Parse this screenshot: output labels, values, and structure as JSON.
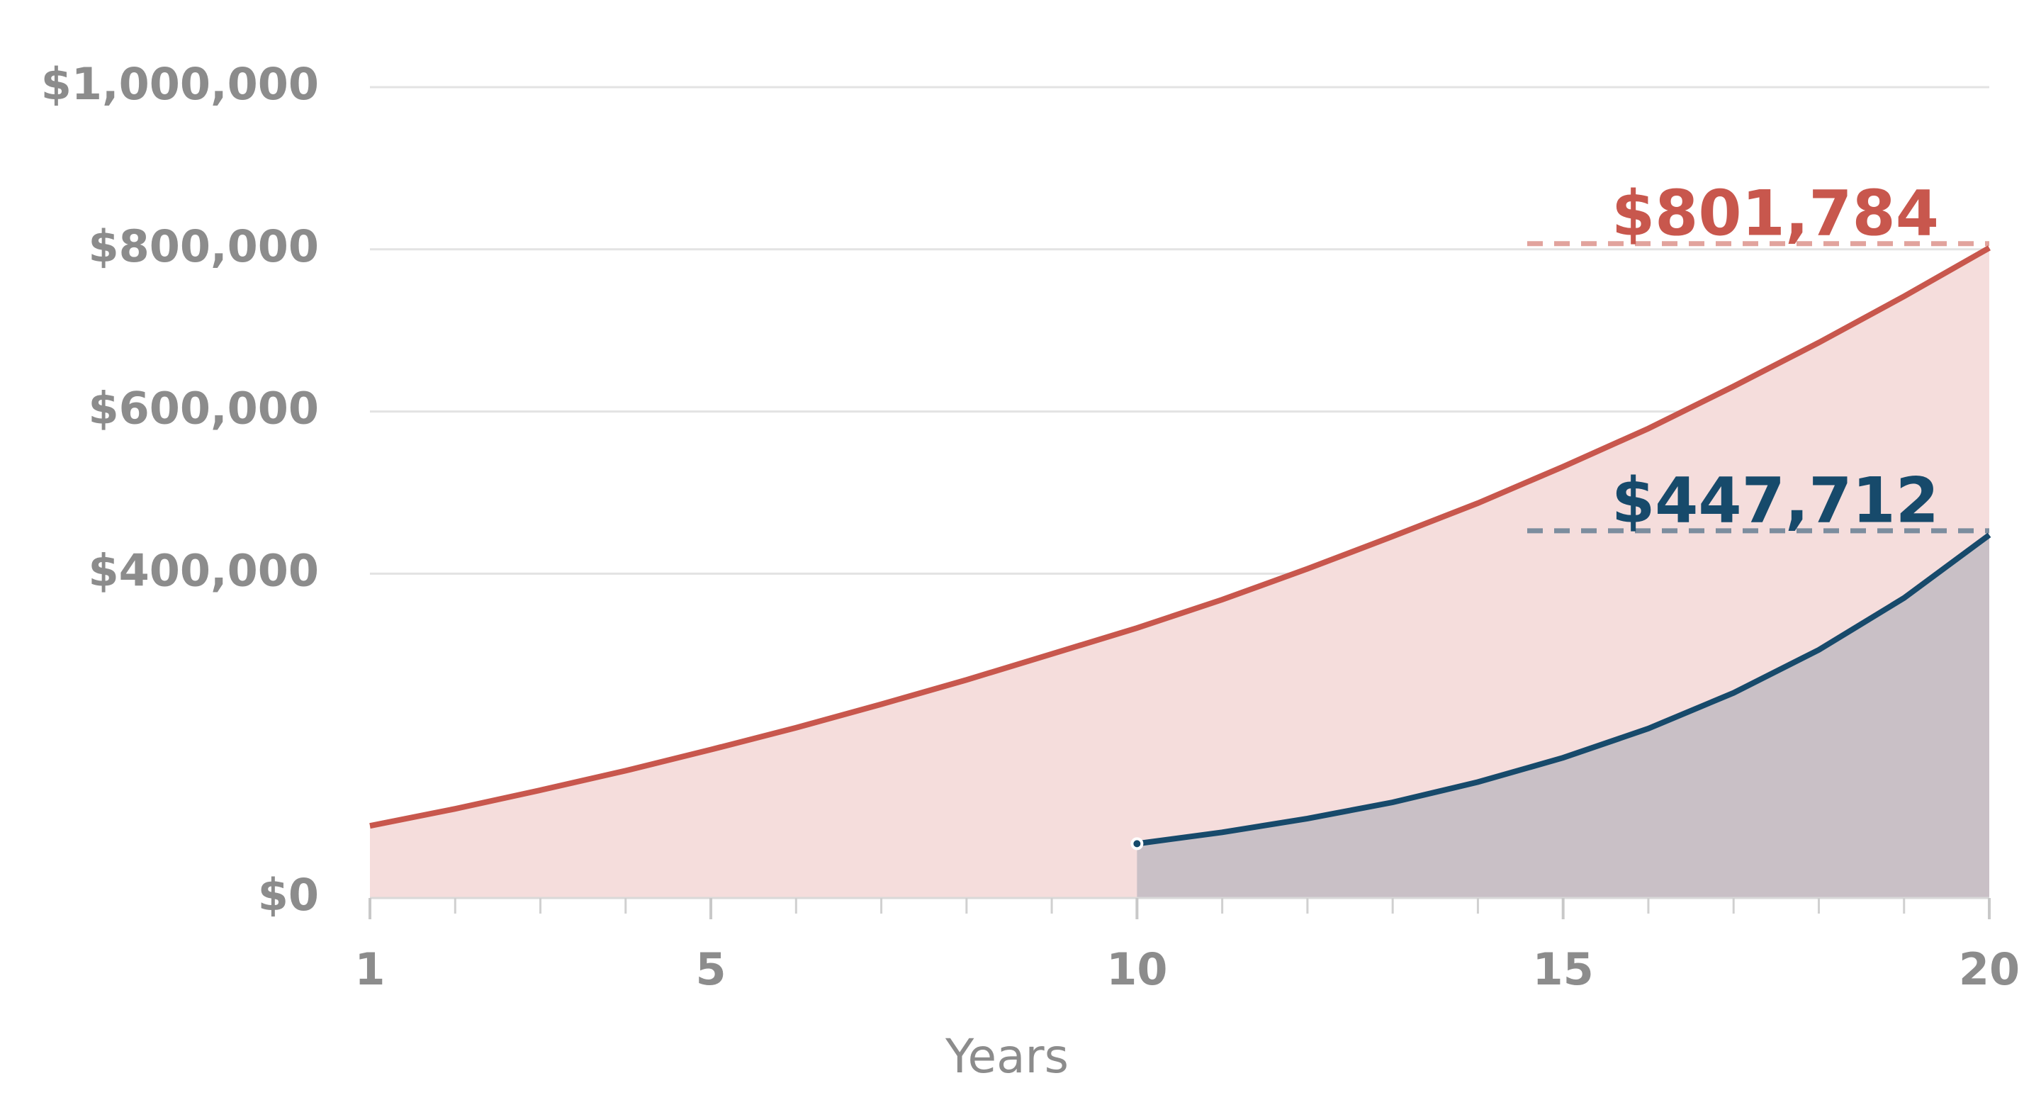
{
  "chart_data": {
    "type": "area",
    "x": [
      1,
      2,
      3,
      4,
      5,
      6,
      7,
      8,
      9,
      10,
      11,
      12,
      13,
      14,
      15,
      16,
      17,
      18,
      19,
      20
    ],
    "series": [
      {
        "color": "#c8574d",
        "fill": "#f5dddc",
        "values": [
          89000,
          110000,
          133000,
          157000,
          183000,
          210000,
          239000,
          269000,
          301000,
          333000,
          368000,
          406000,
          446000,
          487000,
          532000,
          579000,
          631000,
          685000,
          742000,
          801784
        ],
        "value_labels": [
          null,
          null,
          null,
          null,
          null,
          null,
          null,
          null,
          null,
          null,
          null,
          null,
          null,
          null,
          null,
          null,
          null,
          null,
          null,
          "$801,784"
        ]
      },
      {
        "color": "#174a6b",
        "fill": "#c9c0c6",
        "values": [
          null,
          null,
          null,
          null,
          null,
          null,
          null,
          null,
          null,
          67000,
          81000,
          98000,
          118000,
          143000,
          173000,
          209000,
          253000,
          306000,
          370000,
          447712
        ],
        "value_labels": [
          null,
          null,
          null,
          null,
          null,
          null,
          null,
          null,
          null,
          null,
          null,
          null,
          null,
          null,
          null,
          null,
          null,
          null,
          null,
          "$447,712"
        ]
      }
    ],
    "xlabel": "Years",
    "xlim": [
      1,
      20
    ],
    "xticks": [
      1,
      5,
      10,
      15,
      20
    ],
    "ylim": [
      0,
      1000000
    ],
    "yticks": [
      {
        "value": 0,
        "label": "$0"
      },
      {
        "value": 400000,
        "label": "$400,000"
      },
      {
        "value": 600000,
        "label": "$600,000"
      },
      {
        "value": 800000,
        "label": "$800,000"
      },
      {
        "value": 1000000,
        "label": "$1,000,000"
      }
    ],
    "grid": true
  }
}
